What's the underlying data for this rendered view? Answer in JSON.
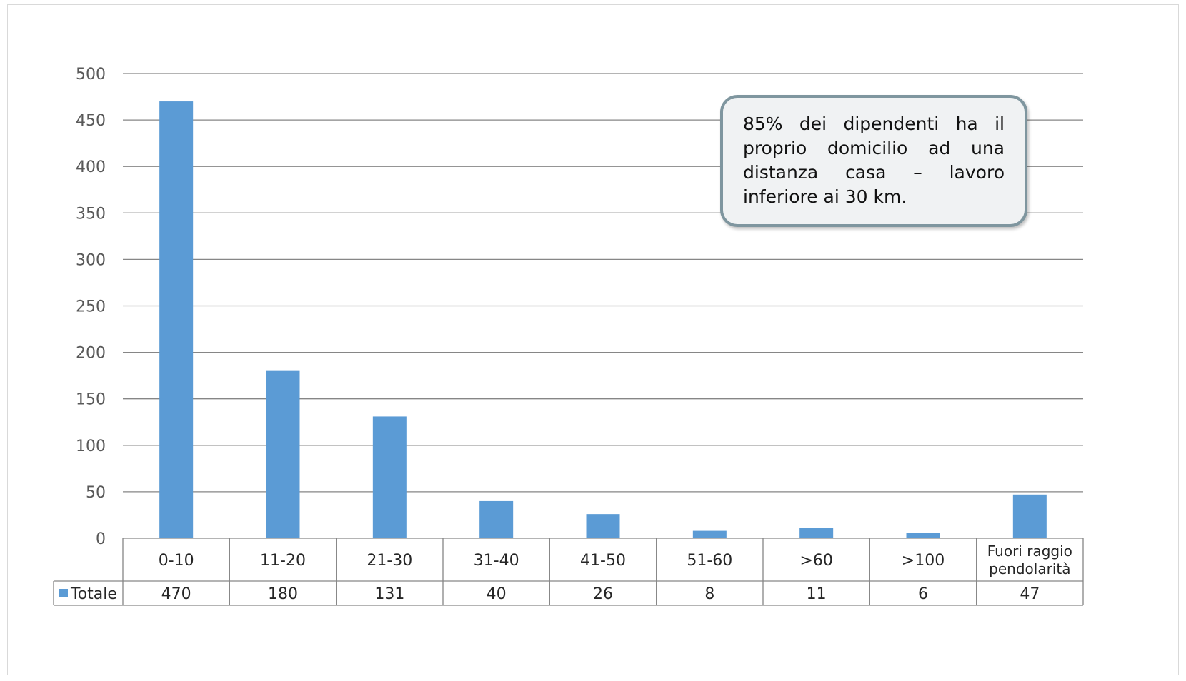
{
  "chart_data": {
    "type": "bar",
    "categories": [
      "0-10",
      "11-20",
      "21-30",
      "31-40",
      "41-50",
      "51-60",
      ">60",
      ">100",
      "Fuori raggio pendolarità"
    ],
    "series": [
      {
        "name": "Totale",
        "values": [
          470,
          180,
          131,
          40,
          26,
          8,
          11,
          6,
          47
        ]
      }
    ],
    "yticks": [
      "0",
      "50",
      "100",
      "150",
      "200",
      "250",
      "300",
      "350",
      "400",
      "450",
      "500"
    ],
    "ylim": [
      0,
      500
    ],
    "grid": true,
    "legend": "data-table",
    "data_table": true,
    "annotation": "85% dei dipendenti ha il proprio domicilio ad una distanza casa – lavoro inferiore ai 30 km."
  },
  "colors": {
    "bar": "#5b9bd5",
    "grid": "#868686",
    "axis_text": "#595959"
  }
}
